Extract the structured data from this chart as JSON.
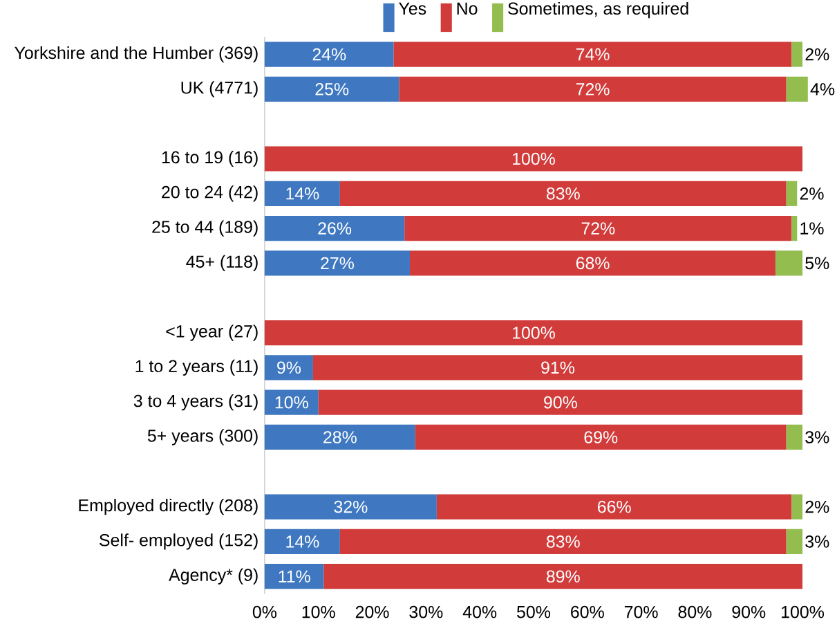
{
  "chart_data": {
    "type": "bar",
    "orientation": "horizontal",
    "stacked": true,
    "legend": "top",
    "categories": [
      "Yorkshire and the Humber (369)",
      "UK (4771)",
      null,
      "16 to 19 (16)",
      "20 to 24 (42)",
      "25 to 44 (189)",
      "45+ (118)",
      null,
      "<1 year (27)",
      "1 to 2 years (11)",
      "3 to 4 years (31)",
      "5+ years (300)",
      null,
      "Employed directly (208)",
      "Self- employed (152)",
      "Agency* (9)"
    ],
    "series": [
      {
        "name": "Yes",
        "color": "#3f78c0",
        "values": [
          24,
          25,
          null,
          null,
          14,
          26,
          27,
          null,
          null,
          9,
          10,
          28,
          null,
          32,
          14,
          11
        ],
        "value_labels": [
          "24%",
          "25%",
          null,
          null,
          "14%",
          "26%",
          "27%",
          null,
          null,
          "9%",
          "10%",
          "28%",
          null,
          "32%",
          "14%",
          "11%"
        ]
      },
      {
        "name": "No",
        "color": "#d13c3b",
        "values": [
          74,
          72,
          null,
          100,
          83,
          72,
          68,
          null,
          100,
          91,
          90,
          69,
          null,
          66,
          83,
          89
        ],
        "value_labels": [
          "74%",
          "72%",
          null,
          "100%",
          "83%",
          "72%",
          "68%",
          null,
          "100%",
          "91%",
          "90%",
          "69%",
          null,
          "66%",
          "83%",
          "89%"
        ]
      },
      {
        "name": "Sometimes, as required",
        "color": "#93bd4f",
        "values": [
          2,
          4,
          null,
          null,
          2,
          1,
          5,
          null,
          null,
          null,
          null,
          3,
          null,
          2,
          3,
          null
        ],
        "value_labels": [
          "2%",
          "4%",
          null,
          null,
          "2%",
          "1%",
          "5%",
          null,
          null,
          null,
          null,
          "3%",
          null,
          "2%",
          "3%",
          null
        ]
      }
    ],
    "xlim": [
      0,
      101
    ],
    "xticks": [
      {
        "value": 0,
        "label": "0%"
      },
      {
        "value": 10,
        "label": "10%"
      },
      {
        "value": 20,
        "label": "20%"
      },
      {
        "value": 30,
        "label": "30%"
      },
      {
        "value": 40,
        "label": "40%"
      },
      {
        "value": 50,
        "label": "50%"
      },
      {
        "value": 60,
        "label": "60%"
      },
      {
        "value": 70,
        "label": "70%"
      },
      {
        "value": 80,
        "label": "80%"
      },
      {
        "value": 90,
        "label": "90%"
      },
      {
        "value": 100,
        "label": "100%"
      }
    ]
  }
}
